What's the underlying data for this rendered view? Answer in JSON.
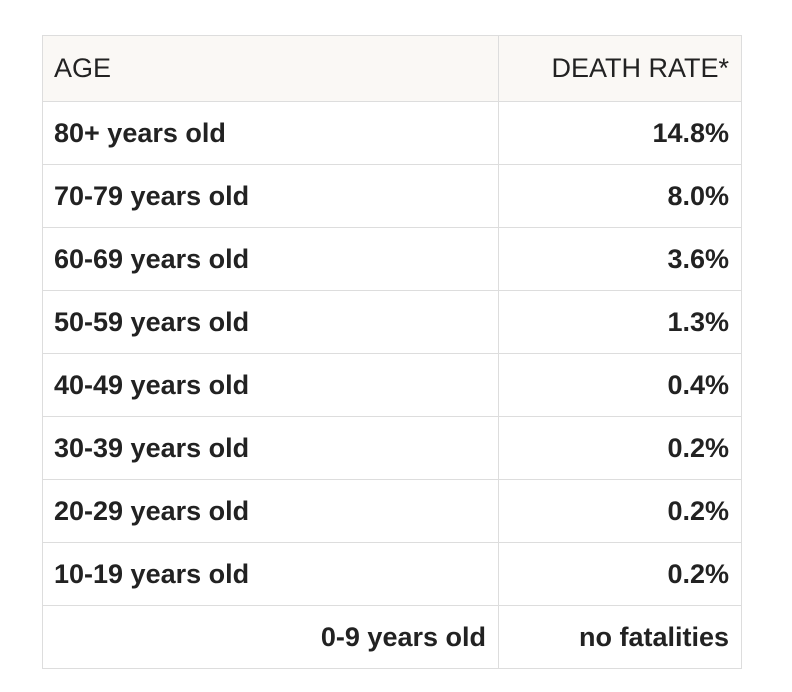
{
  "table": {
    "headers": {
      "age": "AGE",
      "death_rate": "DEATH RATE*"
    },
    "rows": [
      {
        "age": "80+ years old",
        "rate": "14.8%"
      },
      {
        "age": "70-79 years old",
        "rate": "8.0%"
      },
      {
        "age": "60-69 years old",
        "rate": "3.6%"
      },
      {
        "age": "50-59 years old",
        "rate": "1.3%"
      },
      {
        "age": "40-49 years old",
        "rate": "0.4%"
      },
      {
        "age": "30-39 years old",
        "rate": "0.2%"
      },
      {
        "age": "20-29 years old",
        "rate": "0.2%"
      },
      {
        "age": "10-19 years old",
        "rate": "0.2%"
      },
      {
        "age": "0-9 years old",
        "rate": "no fatalities"
      }
    ]
  },
  "colors": {
    "header_background": "#faf8f5",
    "border": "#dddddd",
    "text": "#222222"
  }
}
